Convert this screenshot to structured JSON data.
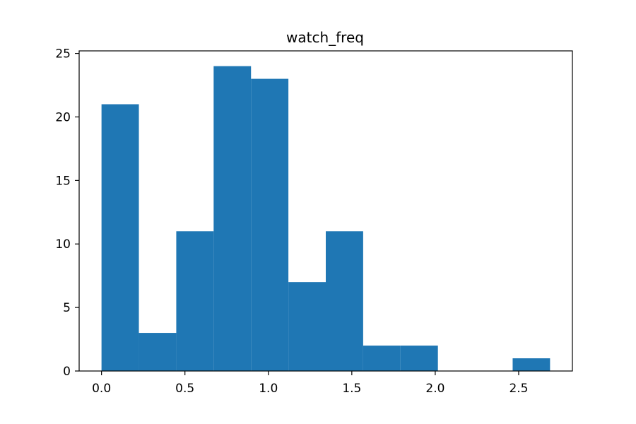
{
  "chart_data": {
    "type": "bar",
    "title": "watch_freq",
    "xlabel": "",
    "ylabel": "",
    "bins": [
      {
        "x0": 0.0,
        "x1": 0.224,
        "value": 21
      },
      {
        "x0": 0.224,
        "x1": 0.448,
        "value": 3
      },
      {
        "x0": 0.448,
        "x1": 0.672,
        "value": 11
      },
      {
        "x0": 0.672,
        "x1": 0.896,
        "value": 24
      },
      {
        "x0": 0.896,
        "x1": 1.12,
        "value": 23
      },
      {
        "x0": 1.12,
        "x1": 1.344,
        "value": 7
      },
      {
        "x0": 1.344,
        "x1": 1.568,
        "value": 11
      },
      {
        "x0": 1.568,
        "x1": 1.792,
        "value": 2
      },
      {
        "x0": 1.792,
        "x1": 2.016,
        "value": 2
      },
      {
        "x0": 2.016,
        "x1": 2.24,
        "value": 0
      },
      {
        "x0": 2.24,
        "x1": 2.464,
        "value": 0
      },
      {
        "x0": 2.464,
        "x1": 2.688,
        "value": 1
      }
    ],
    "xlim": [
      -0.134,
      2.822
    ],
    "ylim": [
      0,
      25.2
    ],
    "xticks": [
      {
        "value": 0.0,
        "label": "0.0"
      },
      {
        "value": 0.5,
        "label": "0.5"
      },
      {
        "value": 1.0,
        "label": "1.0"
      },
      {
        "value": 1.5,
        "label": "1.5"
      },
      {
        "value": 2.0,
        "label": "2.0"
      },
      {
        "value": 2.5,
        "label": "2.5"
      }
    ],
    "yticks": [
      {
        "value": 0,
        "label": "0"
      },
      {
        "value": 5,
        "label": "5"
      },
      {
        "value": 10,
        "label": "10"
      },
      {
        "value": 15,
        "label": "15"
      },
      {
        "value": 20,
        "label": "20"
      },
      {
        "value": 25,
        "label": "25"
      }
    ],
    "bar_color": "#1f77b4",
    "grid": false,
    "legend": "none"
  }
}
